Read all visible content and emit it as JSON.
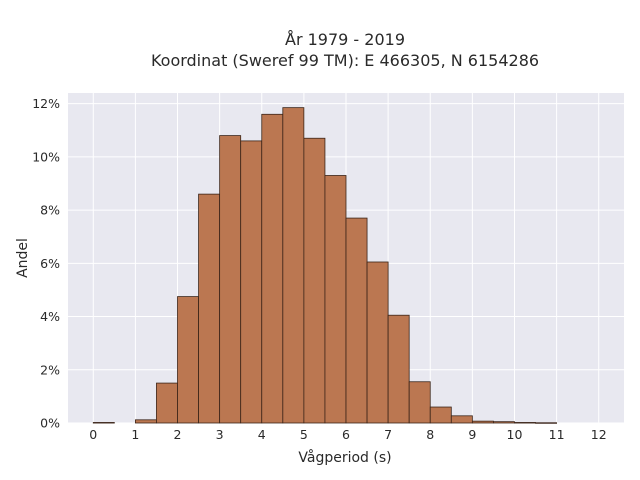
{
  "chart_data": {
    "type": "bar",
    "title_lines": [
      "År 1979 - 2019",
      "Koordinat (Sweref 99 TM): E 466305, N 6154286"
    ],
    "xlabel": "Vågperiod (s)",
    "ylabel": "Andel",
    "xlim": [
      -0.6,
      12.6
    ],
    "ylim": [
      0,
      12.4
    ],
    "x_ticks": [
      0,
      1,
      2,
      3,
      4,
      5,
      6,
      7,
      8,
      9,
      10,
      11,
      12
    ],
    "y_ticks": [
      0,
      2,
      4,
      6,
      8,
      10,
      12
    ],
    "y_tick_suffix": "%",
    "grid": true,
    "bin_width": 0.5,
    "bins": [
      {
        "x0": 0.0,
        "value": 0.02
      },
      {
        "x0": 0.5,
        "value": 0.0
      },
      {
        "x0": 1.0,
        "value": 0.12
      },
      {
        "x0": 1.5,
        "value": 1.5
      },
      {
        "x0": 2.0,
        "value": 4.75
      },
      {
        "x0": 2.5,
        "value": 8.6
      },
      {
        "x0": 3.0,
        "value": 10.8
      },
      {
        "x0": 3.5,
        "value": 10.6
      },
      {
        "x0": 4.0,
        "value": 11.6
      },
      {
        "x0": 4.5,
        "value": 11.85
      },
      {
        "x0": 5.0,
        "value": 10.7
      },
      {
        "x0": 5.5,
        "value": 9.3
      },
      {
        "x0": 6.0,
        "value": 7.7
      },
      {
        "x0": 6.5,
        "value": 6.05
      },
      {
        "x0": 7.0,
        "value": 4.05
      },
      {
        "x0": 7.5,
        "value": 1.55
      },
      {
        "x0": 8.0,
        "value": 0.6
      },
      {
        "x0": 8.5,
        "value": 0.27
      },
      {
        "x0": 9.0,
        "value": 0.07
      },
      {
        "x0": 9.5,
        "value": 0.05
      },
      {
        "x0": 10.0,
        "value": 0.02
      },
      {
        "x0": 10.5,
        "value": 0.01
      },
      {
        "x0": 11.0,
        "value": 0.0
      },
      {
        "x0": 11.5,
        "value": 0.0
      }
    ],
    "colors": {
      "bar_fill": "#bb7751",
      "bar_edge": "#3b2418",
      "plot_bg": "#e8e8f0",
      "grid": "#ffffff"
    }
  }
}
